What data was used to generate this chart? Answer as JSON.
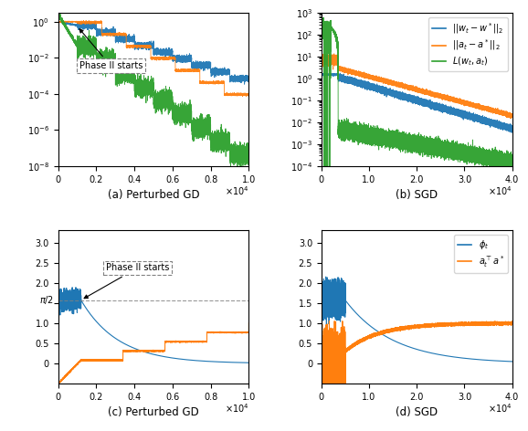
{
  "fig_width": 5.78,
  "fig_height": 4.72,
  "dpi": 100,
  "blue_color": "#1f77b4",
  "orange_color": "#ff7f0e",
  "green_color": "#2ca02c",
  "subplot_titles": [
    "(a) Perturbed GD",
    "(b) SGD",
    "(c) Perturbed GD",
    "(d) SGD"
  ],
  "legend_labels": [
    "$||w_t - w^*||_2$",
    "$||a_t - a^*||_2$",
    "$L(w_t, a_t)$"
  ],
  "legend_labels_cd": [
    "$\\phi_t$",
    "$a_t^\\top a^*$"
  ],
  "pi_over_2": 1.5707963267948966,
  "random_seed": 42
}
